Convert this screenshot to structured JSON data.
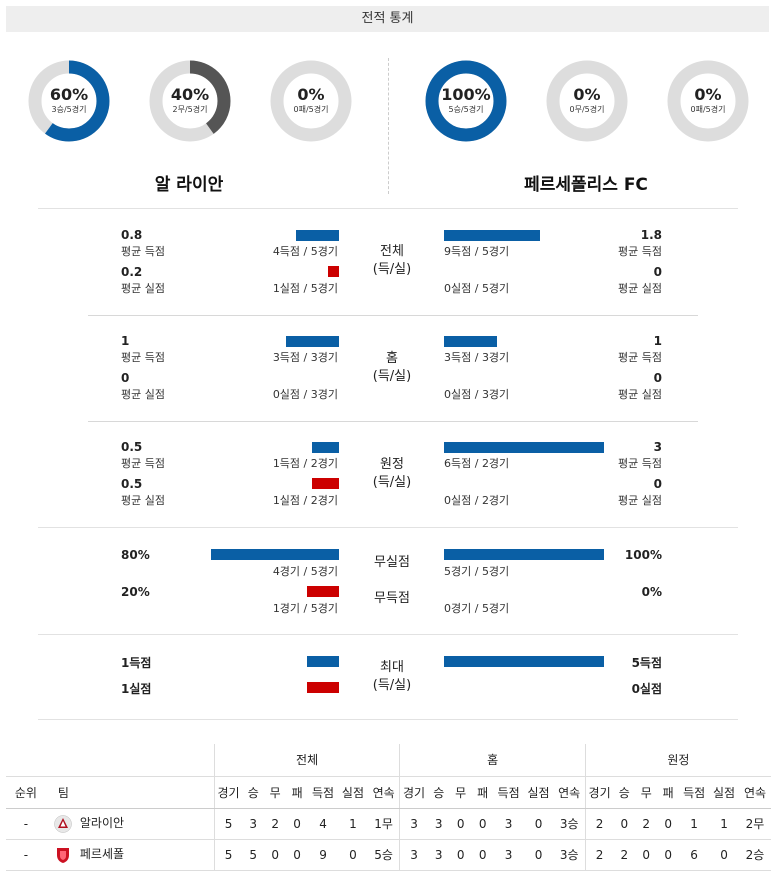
{
  "header": {
    "title": "전적 통계"
  },
  "teams": {
    "home": {
      "name": "알 라이안",
      "short_name": "알라이안",
      "donuts": [
        {
          "pct": "60%",
          "sub": "3승/5경기",
          "fraction": 0.6,
          "color": "#0a5fa5"
        },
        {
          "pct": "40%",
          "sub": "2무/5경기",
          "fraction": 0.4,
          "color": "#555555"
        },
        {
          "pct": "0%",
          "sub": "0패/5경기",
          "fraction": 0.0,
          "color": "#cc0000"
        }
      ]
    },
    "away": {
      "name": "페르세폴리스 FC",
      "short_name": "페르세폴",
      "donuts": [
        {
          "pct": "100%",
          "sub": "5승/5경기",
          "fraction": 1.0,
          "color": "#0a5fa5"
        },
        {
          "pct": "0%",
          "sub": "0무/5경기",
          "fraction": 0.0,
          "color": "#555555"
        },
        {
          "pct": "0%",
          "sub": "0패/5경기",
          "fraction": 0.0,
          "color": "#cc0000"
        }
      ]
    }
  },
  "labels": {
    "avg_for": "평균 득점",
    "avg_against": "평균 실점"
  },
  "sections": {
    "overall": {
      "cat1": "전체",
      "cat2": "(득/실)",
      "home": {
        "gf": "0.8",
        "gf_cnt": "4득점 / 5경기",
        "gf_frac": 0.27,
        "ga": "0.2",
        "ga_cnt": "1실점 / 5경기",
        "ga_frac": 0.07
      },
      "away": {
        "gf": "1.8",
        "gf_cnt": "9득점 / 5경기",
        "gf_frac": 0.6,
        "ga": "0",
        "ga_cnt": "0실점 / 5경기",
        "ga_frac": 0
      }
    },
    "home_games": {
      "cat1": "홈",
      "cat2": "(득/실)",
      "home": {
        "gf": "1",
        "gf_cnt": "3득점 / 3경기",
        "gf_frac": 0.33,
        "ga": "0",
        "ga_cnt": "0실점 / 3경기",
        "ga_frac": 0
      },
      "away": {
        "gf": "1",
        "gf_cnt": "3득점 / 3경기",
        "gf_frac": 0.33,
        "ga": "0",
        "ga_cnt": "0실점 / 3경기",
        "ga_frac": 0
      }
    },
    "away_games": {
      "cat1": "원정",
      "cat2": "(득/실)",
      "home": {
        "gf": "0.5",
        "gf_cnt": "1득점 / 2경기",
        "gf_frac": 0.17,
        "ga": "0.5",
        "ga_cnt": "1실점 / 2경기",
        "ga_frac": 0.17
      },
      "away": {
        "gf": "3",
        "gf_cnt": "6득점 / 2경기",
        "gf_frac": 1.0,
        "ga": "0",
        "ga_cnt": "0실점 / 2경기",
        "ga_frac": 0
      }
    },
    "clean": {
      "cat_clean": "무실점",
      "cat_nogoal": "무득점",
      "home": {
        "clean_pct": "80%",
        "clean_cnt": "4경기 / 5경기",
        "clean_frac": 0.8,
        "nogoal_pct": "20%",
        "nogoal_cnt": "1경기 / 5경기",
        "nogoal_frac": 0.2
      },
      "away": {
        "clean_pct": "100%",
        "clean_cnt": "5경기 / 5경기",
        "clean_frac": 1.0,
        "nogoal_pct": "0%",
        "nogoal_cnt": "0경기 / 5경기",
        "nogoal_frac": 0
      }
    },
    "max": {
      "cat1": "최대",
      "cat2": "(득/실)",
      "home": {
        "gf": "1득점",
        "gf_frac": 0.2,
        "ga": "1실점",
        "ga_frac": 0.2
      },
      "away": {
        "gf": "5득점",
        "gf_frac": 1.0,
        "ga": "0실점",
        "ga_frac": 0
      }
    }
  },
  "table": {
    "groups": [
      "전체",
      "홈",
      "원정"
    ],
    "rank_header": "순위",
    "team_header": "팀",
    "columns": [
      "경기",
      "승",
      "무",
      "패",
      "득점",
      "실점",
      "연속"
    ],
    "rows": [
      {
        "rank": "-",
        "team": "알라이안",
        "overall": [
          "5",
          "3",
          "2",
          "0",
          "4",
          "1",
          "1무"
        ],
        "home": [
          "3",
          "3",
          "0",
          "0",
          "3",
          "0",
          "3승"
        ],
        "away": [
          "2",
          "0",
          "2",
          "0",
          "1",
          "1",
          "2무"
        ]
      },
      {
        "rank": "-",
        "team": "페르세폴",
        "overall": [
          "5",
          "5",
          "0",
          "0",
          "9",
          "0",
          "5승"
        ],
        "home": [
          "3",
          "3",
          "0",
          "0",
          "3",
          "0",
          "3승"
        ],
        "away": [
          "2",
          "2",
          "0",
          "0",
          "6",
          "0",
          "2승"
        ]
      }
    ]
  },
  "colors": {
    "blue": "#0a5fa5",
    "red": "#cc0000",
    "gray": "#555555",
    "track": "#dddddd"
  }
}
